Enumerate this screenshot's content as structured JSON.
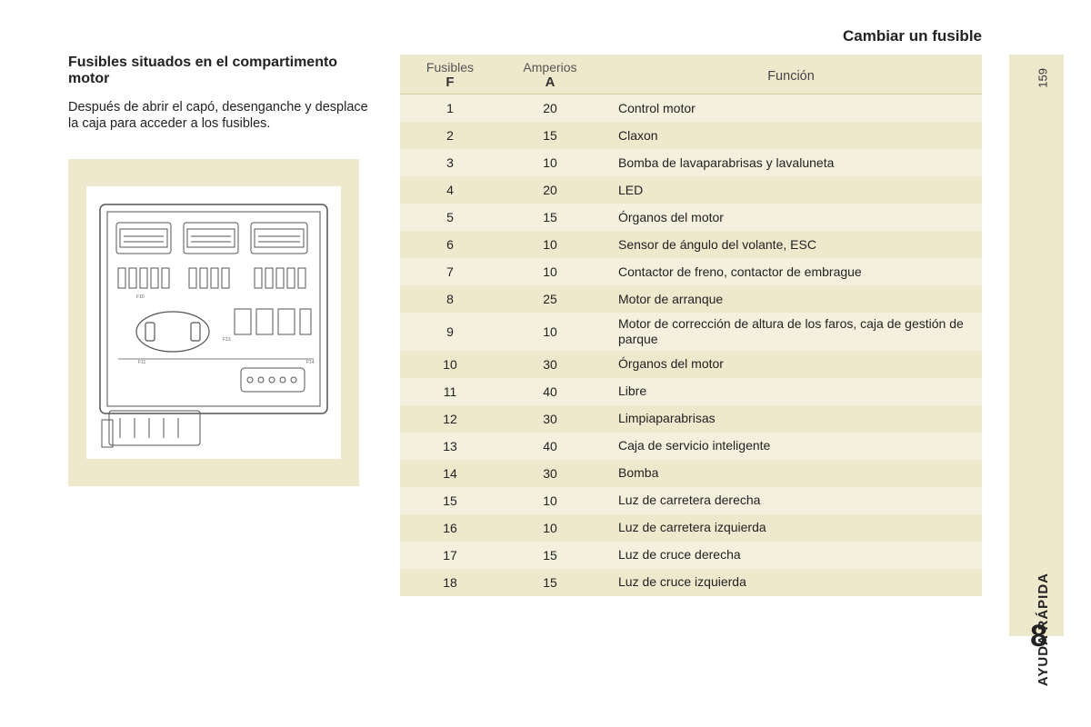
{
  "page": {
    "title": "Cambiar un fusible",
    "number": "159",
    "side_label": "AYUDA RÁPIDA",
    "chapter": "8"
  },
  "left": {
    "heading": "Fusibles situados en el compartimento motor",
    "body": "Después de abrir el capó, desenganche y desplace la caja para acceder a los fusibles."
  },
  "table": {
    "head": {
      "fuses_top": "Fusibles",
      "fuses_bot": "F",
      "amps_top": "Amperios",
      "amps_bot": "A",
      "func": "Función"
    },
    "rows": [
      {
        "f": "1",
        "a": "20",
        "fn": "Control motor"
      },
      {
        "f": "2",
        "a": "15",
        "fn": "Claxon"
      },
      {
        "f": "3",
        "a": "10",
        "fn": "Bomba de lavaparabrisas y lavaluneta"
      },
      {
        "f": "4",
        "a": "20",
        "fn": "LED"
      },
      {
        "f": "5",
        "a": "15",
        "fn": "Órganos del motor"
      },
      {
        "f": "6",
        "a": "10",
        "fn": "Sensor de ángulo del volante, ESC"
      },
      {
        "f": "7",
        "a": "10",
        "fn": "Contactor de freno, contactor de embrague"
      },
      {
        "f": "8",
        "a": "25",
        "fn": "Motor de arranque"
      },
      {
        "f": "9",
        "a": "10",
        "fn": "Motor de corrección de altura de los faros, caja de gestión de parque"
      },
      {
        "f": "10",
        "a": "30",
        "fn": "Órganos del motor"
      },
      {
        "f": "11",
        "a": "40",
        "fn": "Libre"
      },
      {
        "f": "12",
        "a": "30",
        "fn": "Limpiaparabrisas"
      },
      {
        "f": "13",
        "a": "40",
        "fn": "Caja de servicio inteligente"
      },
      {
        "f": "14",
        "a": "30",
        "fn": "Bomba"
      },
      {
        "f": "15",
        "a": "10",
        "fn": "Luz de carretera derecha"
      },
      {
        "f": "16",
        "a": "10",
        "fn": "Luz de carretera izquierda"
      },
      {
        "f": "17",
        "a": "15",
        "fn": "Luz de cruce derecha"
      },
      {
        "f": "18",
        "a": "15",
        "fn": "Luz de cruce izquierda"
      }
    ]
  },
  "colors": {
    "panel_bg": "#eee9cd",
    "row_alt": "#f4f0de",
    "text": "#222222",
    "border": "#d6cfa8"
  },
  "diagram": {
    "type": "fusebox-line-drawing",
    "bg": "#ffffff",
    "stroke": "#555555",
    "labels": [
      "F1",
      "F2",
      "F3",
      "F4",
      "F5",
      "F6",
      "F7",
      "F8",
      "F9",
      "F10",
      "F11",
      "F12",
      "F13",
      "F14",
      "F15",
      "F16",
      "F17",
      "F18"
    ]
  }
}
